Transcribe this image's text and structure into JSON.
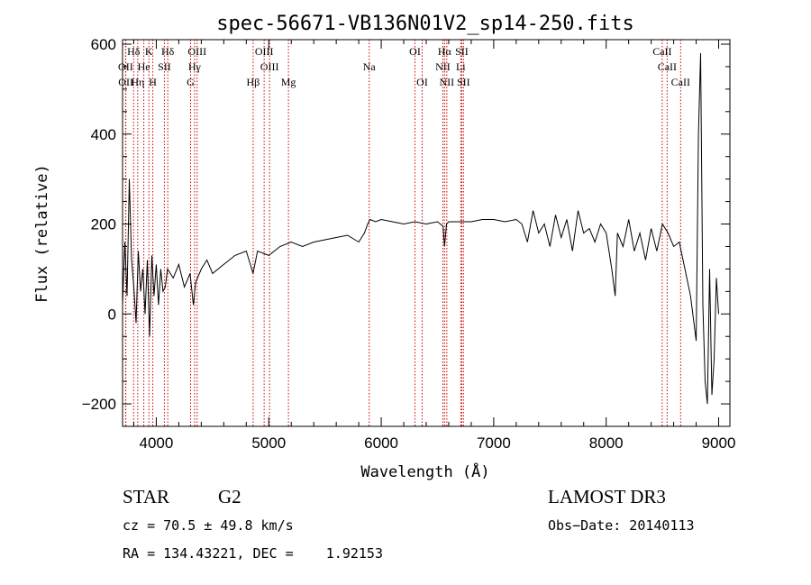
{
  "chart_data": {
    "type": "line",
    "title": "spec-56671-VB136N01V2_sp14-250.fits",
    "xlabel": "Wavelength (Å)",
    "ylabel": "Flux (relative)",
    "xlim": [
      3700,
      9100
    ],
    "ylim": [
      -250,
      610
    ],
    "xticks": [
      4000,
      5000,
      6000,
      7000,
      8000,
      9000
    ],
    "yticks": [
      -200,
      0,
      200,
      400,
      600
    ],
    "tick_labels": {
      "x": [
        "4000",
        "5000",
        "6000",
        "7000",
        "8000",
        "9000"
      ],
      "y": [
        "−200",
        "0",
        "200",
        "400",
        "600"
      ]
    },
    "series": [
      {
        "name": "flux",
        "x": [
          3700,
          3720,
          3740,
          3760,
          3780,
          3800,
          3820,
          3840,
          3860,
          3880,
          3900,
          3920,
          3940,
          3960,
          3980,
          4000,
          4020,
          4040,
          4060,
          4080,
          4100,
          4150,
          4200,
          4250,
          4300,
          4330,
          4350,
          4400,
          4450,
          4500,
          4600,
          4700,
          4800,
          4860,
          4900,
          5000,
          5100,
          5200,
          5300,
          5400,
          5500,
          5600,
          5700,
          5800,
          5850,
          5880,
          5900,
          5950,
          6000,
          6100,
          6200,
          6300,
          6400,
          6500,
          6550,
          6563,
          6580,
          6600,
          6700,
          6800,
          6900,
          7000,
          7100,
          7200,
          7250,
          7300,
          7350,
          7400,
          7450,
          7500,
          7550,
          7600,
          7650,
          7700,
          7750,
          7800,
          7850,
          7900,
          7950,
          8000,
          8050,
          8080,
          8100,
          8150,
          8200,
          8250,
          8300,
          8350,
          8400,
          8450,
          8500,
          8550,
          8600,
          8650,
          8700,
          8750,
          8800,
          8820,
          8840,
          8860,
          8880,
          8900,
          8920,
          8940,
          8960,
          8980,
          9000
        ],
        "y": [
          20,
          160,
          40,
          300,
          120,
          60,
          -20,
          140,
          50,
          100,
          0,
          120,
          -50,
          130,
          40,
          110,
          20,
          100,
          50,
          60,
          100,
          80,
          110,
          60,
          90,
          20,
          70,
          100,
          120,
          90,
          110,
          130,
          140,
          90,
          140,
          130,
          150,
          160,
          150,
          160,
          165,
          170,
          175,
          160,
          180,
          200,
          210,
          205,
          210,
          205,
          200,
          205,
          200,
          205,
          195,
          150,
          200,
          205,
          205,
          205,
          210,
          210,
          205,
          210,
          200,
          160,
          230,
          180,
          200,
          150,
          220,
          170,
          210,
          140,
          230,
          180,
          190,
          160,
          200,
          180,
          100,
          40,
          180,
          150,
          210,
          140,
          180,
          120,
          190,
          140,
          200,
          180,
          150,
          160,
          100,
          40,
          -60,
          400,
          580,
          20,
          -150,
          -200,
          100,
          -180,
          -100,
          80,
          0
        ]
      }
    ],
    "spectral_lines": [
      {
        "name": "Hδ",
        "wl": 3798,
        "row": 1
      },
      {
        "name": "K",
        "wl": 3934,
        "row": 1
      },
      {
        "name": "Hδ",
        "wl": 4102,
        "row": 1
      },
      {
        "name": "OIII",
        "wl": 4363,
        "row": 1
      },
      {
        "name": "OIII",
        "wl": 4959,
        "row": 1
      },
      {
        "name": "OI",
        "wl": 6300,
        "row": 1
      },
      {
        "name": "Hα",
        "wl": 6563,
        "row": 1
      },
      {
        "name": "SII",
        "wl": 6716,
        "row": 1
      },
      {
        "name": "CaII",
        "wl": 8498,
        "row": 1
      },
      {
        "name": "OII",
        "wl": 3727,
        "row": 2
      },
      {
        "name": "He",
        "wl": 3889,
        "row": 2
      },
      {
        "name": "SII",
        "wl": 4072,
        "row": 2
      },
      {
        "name": "Hγ",
        "wl": 4340,
        "row": 2
      },
      {
        "name": "OIII",
        "wl": 5007,
        "row": 2
      },
      {
        "name": "Na",
        "wl": 5893,
        "row": 2
      },
      {
        "name": "NII",
        "wl": 6548,
        "row": 2
      },
      {
        "name": "Li",
        "wl": 6707,
        "row": 2
      },
      {
        "name": "CaII",
        "wl": 8542,
        "row": 2
      },
      {
        "name": "OII",
        "wl": 3729,
        "row": 3
      },
      {
        "name": "Hη",
        "wl": 3835,
        "row": 3
      },
      {
        "name": "H",
        "wl": 3969,
        "row": 3
      },
      {
        "name": "G",
        "wl": 4305,
        "row": 3
      },
      {
        "name": "Hβ",
        "wl": 4861,
        "row": 3
      },
      {
        "name": "Mg",
        "wl": 5175,
        "row": 3
      },
      {
        "name": "OI",
        "wl": 6364,
        "row": 3
      },
      {
        "name": "NII",
        "wl": 6583,
        "row": 3
      },
      {
        "name": "SII",
        "wl": 6731,
        "row": 3
      },
      {
        "name": "CaII",
        "wl": 8662,
        "row": 3
      }
    ]
  },
  "info": {
    "object_class": "STAR",
    "subclass": "G2",
    "survey": "LAMOST DR3",
    "cz": "cz = 70.5 ± 49.8 km/s",
    "obs_date": "Obs−Date: 20140113",
    "coords": "RA = 134.43221, DEC =    1.92153"
  },
  "colors": {
    "spectrum": "#000000",
    "line_marker": "#cc0000",
    "axes": "#000000"
  }
}
